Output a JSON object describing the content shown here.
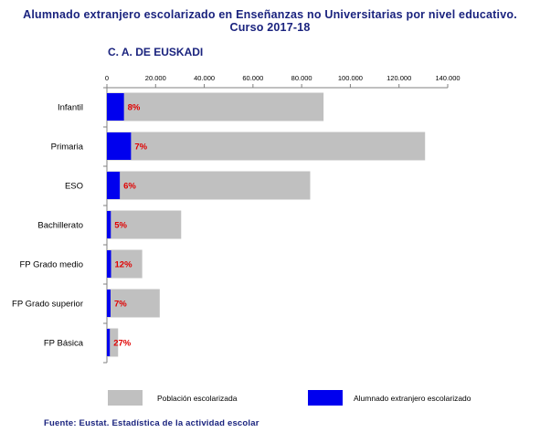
{
  "header": {
    "title_line1": "Alumnado extranjero escolarizado en Enseñanzas no Universitarias por nivel educativo.",
    "title_line2": "Curso 2017-18",
    "region": "C. A. DE EUSKADI"
  },
  "footer": {
    "source": "Fuente: Eustat. Estadística de la actividad escolar"
  },
  "colors": {
    "total": "#c0c0c0",
    "foreign": "#0000ee",
    "pct_label": "#e00000",
    "title": "#1a237e"
  },
  "chart_data": {
    "type": "bar",
    "orientation": "horizontal",
    "stacked": "overlay",
    "categories": [
      "Infantil",
      "Primaria",
      "ESO",
      "Bachillerato",
      "FP Grado medio",
      "FP Grado superior",
      "FP Básica"
    ],
    "series": [
      {
        "name": "Población escolarizada",
        "values": [
          89000,
          130700,
          83500,
          30500,
          14500,
          21700,
          4600
        ]
      },
      {
        "name": "Alumnado extranjero escolarizado",
        "values": [
          7000,
          9900,
          5300,
          1600,
          1700,
          1500,
          1200
        ]
      }
    ],
    "data_labels": [
      "8%",
      "7%",
      "6%",
      "5%",
      "12%",
      "7%",
      "27%"
    ],
    "xlim": [
      0,
      140000
    ],
    "xticks": [
      0,
      20000,
      40000,
      60000,
      80000,
      100000,
      120000,
      140000
    ],
    "xtick_labels": [
      "0",
      "20.000",
      "40.000",
      "60.000",
      "80.000",
      "100.000",
      "120.000",
      "140.000"
    ],
    "title": "Alumnado extranjero escolarizado en Enseñanzas no Universitarias por nivel educativo. Curso 2017-18",
    "xlabel": "",
    "ylabel": "",
    "grid": false,
    "legend_position": "bottom"
  }
}
